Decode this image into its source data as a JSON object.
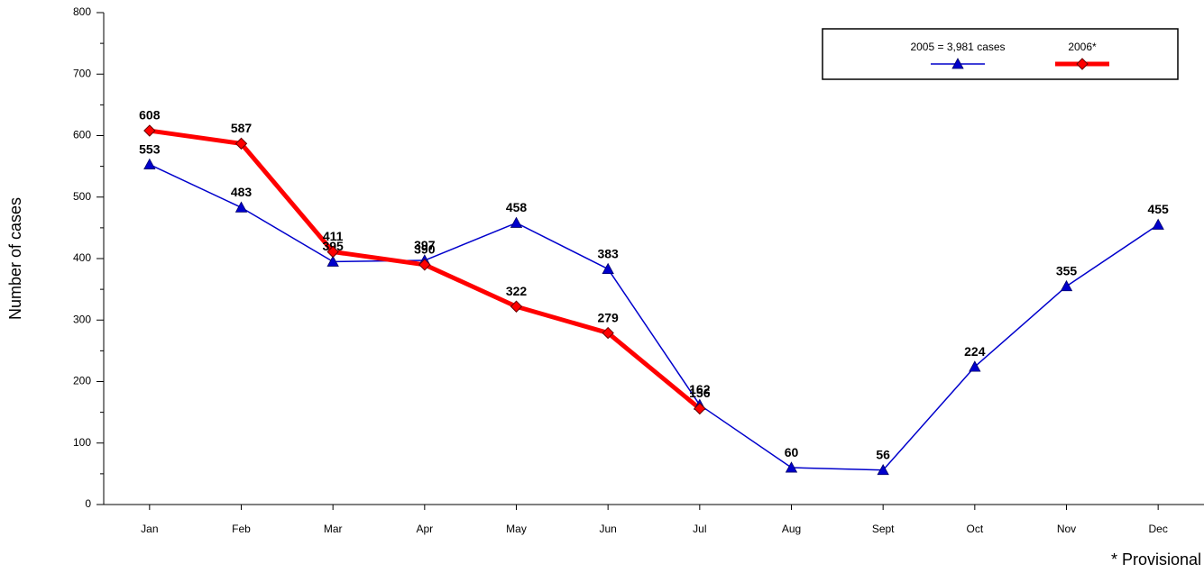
{
  "chart_data": {
    "type": "line",
    "y_label": "Number of cases",
    "annotation": "* Provisional",
    "categories": [
      "Jan",
      "Feb",
      "Mar",
      "Apr",
      "May",
      "Jun",
      "Jul",
      "Aug",
      "Sept",
      "Oct",
      "Nov",
      "Dec"
    ],
    "series": [
      {
        "name": "2005 = 3,981 cases",
        "color": "#0000cc",
        "marker": "triangle",
        "values": [
          553,
          483,
          395,
          397,
          458,
          383,
          162,
          60,
          56,
          224,
          355,
          455
        ]
      },
      {
        "name": "2006*",
        "color": "#ff0000",
        "marker": "diamond",
        "values": [
          608,
          587,
          411,
          390,
          322,
          279,
          156,
          null,
          null,
          null,
          null,
          null
        ]
      }
    ],
    "ylim": [
      0,
      800
    ],
    "yticks": [
      0,
      100,
      200,
      300,
      400,
      500,
      600,
      700,
      800
    ],
    "legend": "top-right"
  }
}
